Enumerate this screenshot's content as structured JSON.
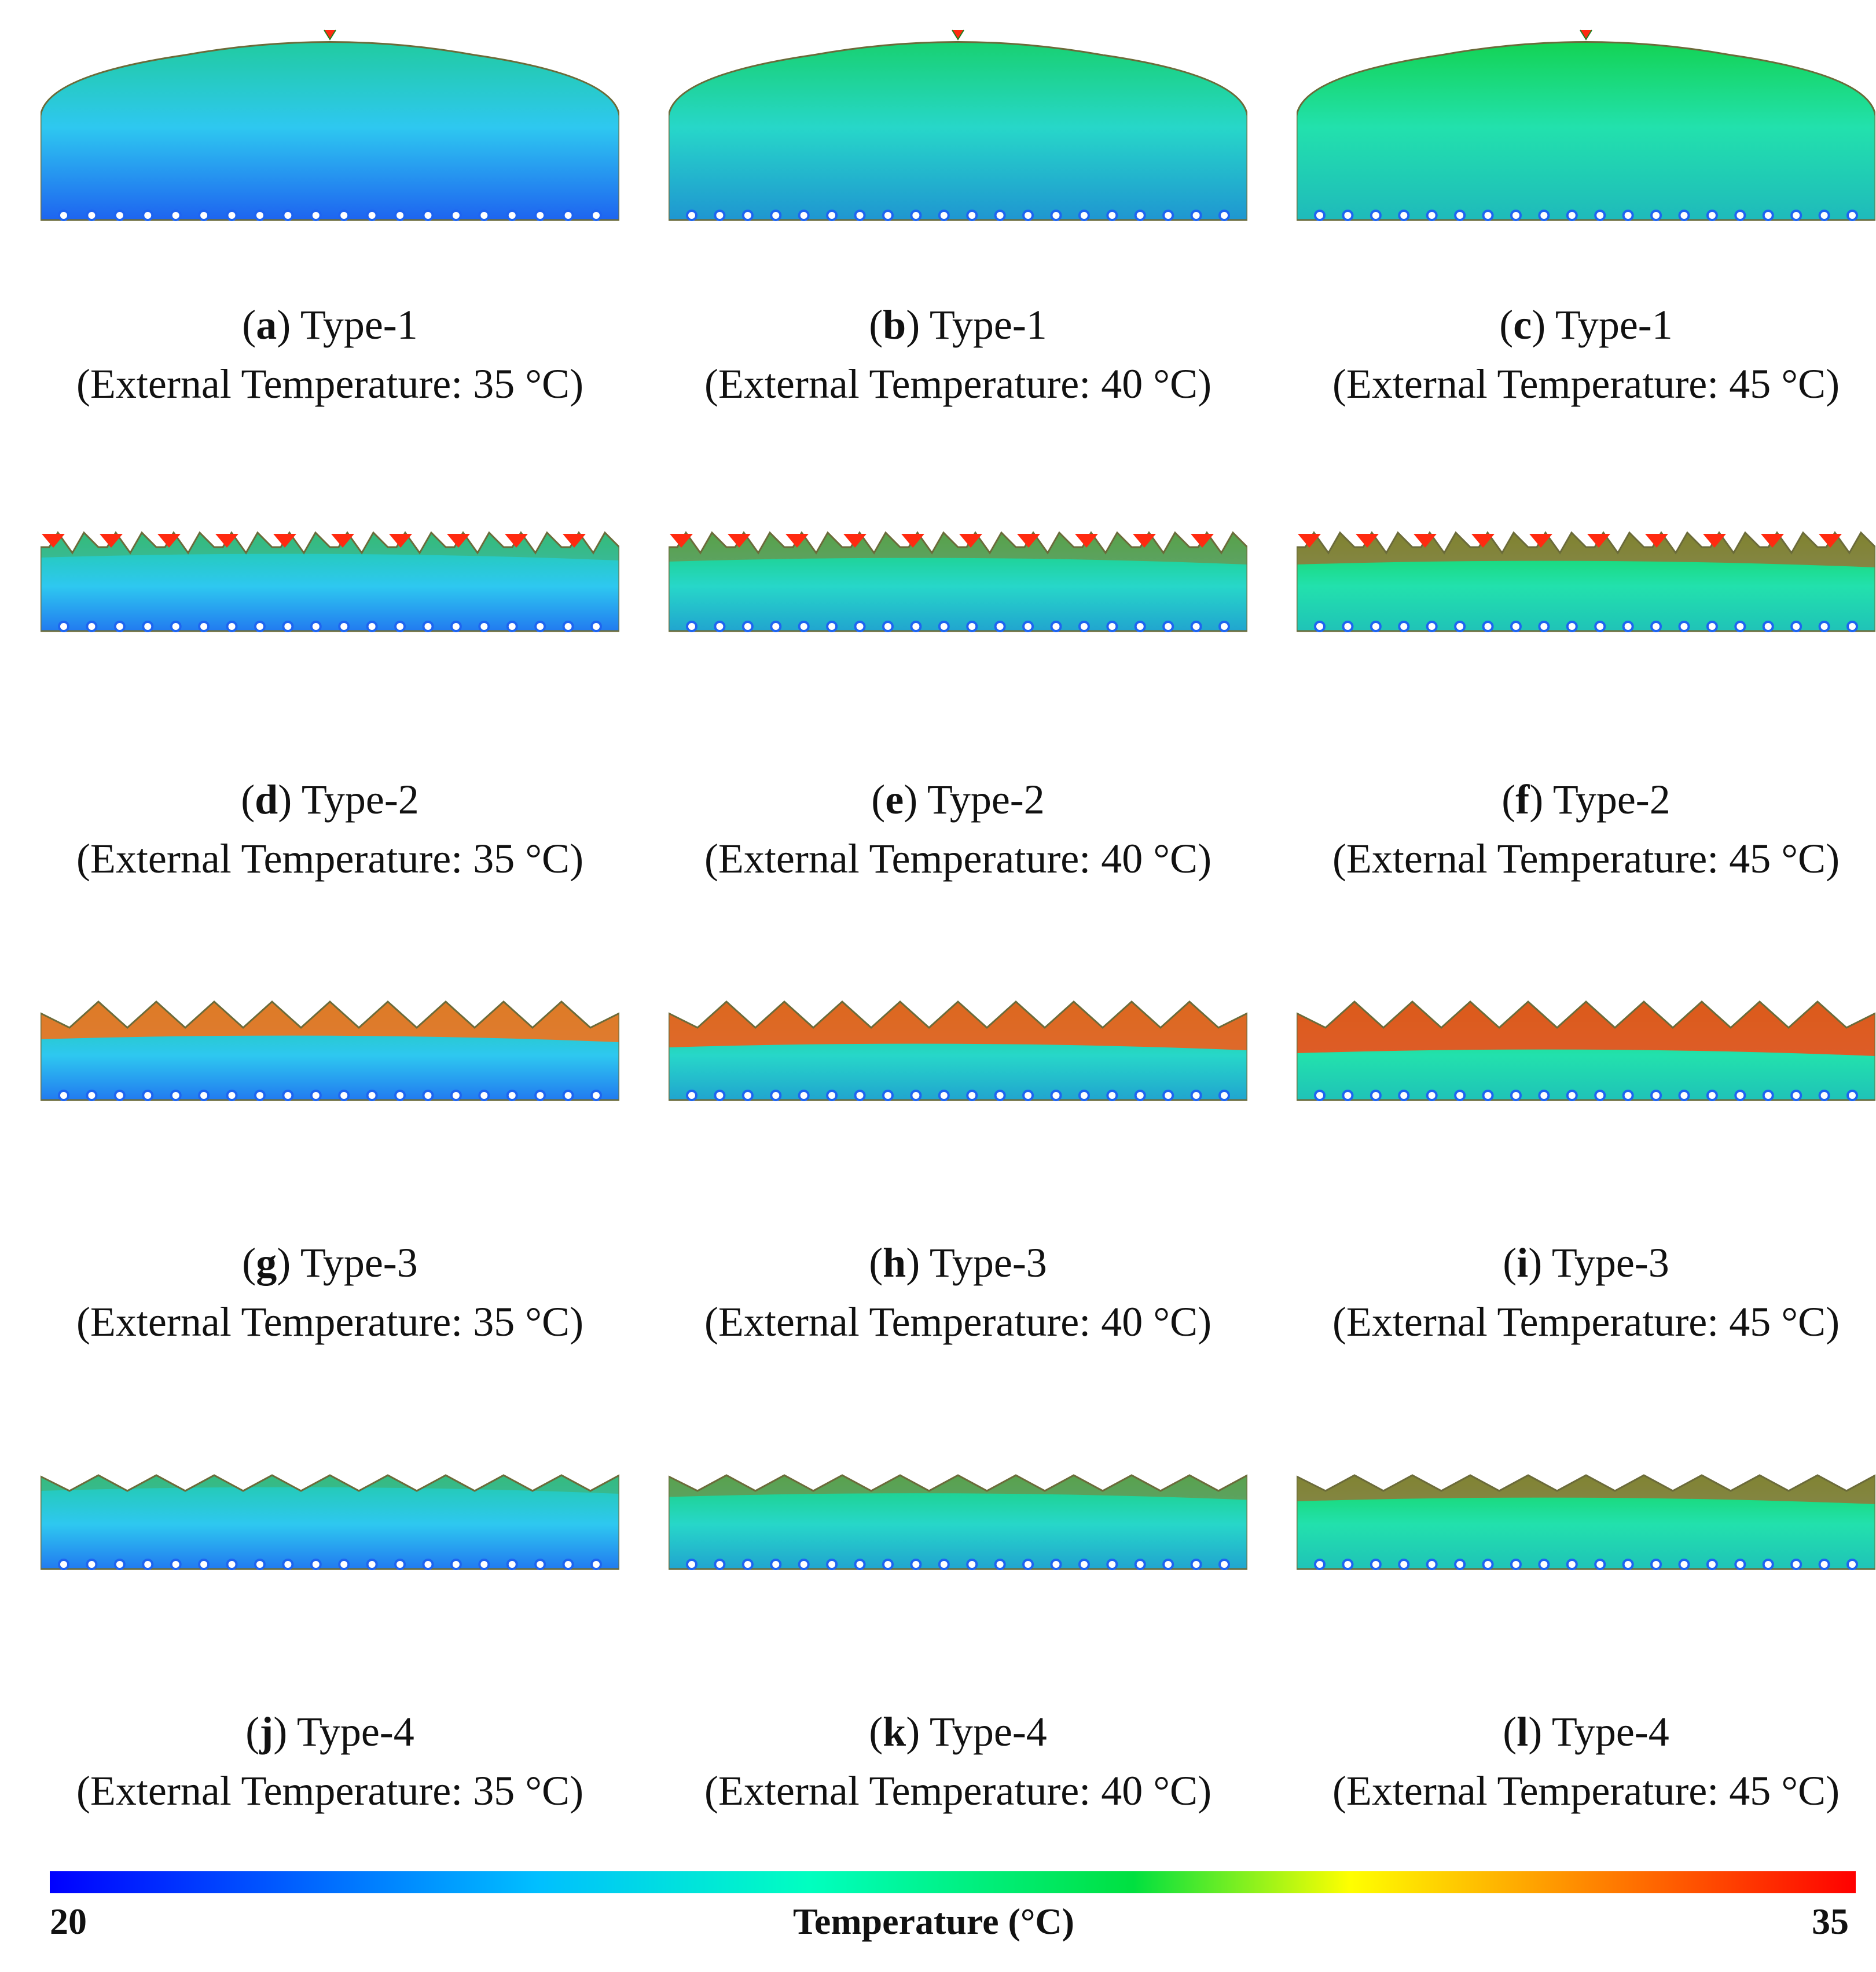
{
  "panels": [
    {
      "letter": "a",
      "type": "Type-1",
      "ext": "(External Temperature: 35 °C)",
      "shape": "dome",
      "heat": 0.0
    },
    {
      "letter": "b",
      "type": "Type-1",
      "ext": "(External Temperature: 40 °C)",
      "shape": "dome",
      "heat": 0.35
    },
    {
      "letter": "c",
      "type": "Type-1",
      "ext": "(External Temperature: 45 °C)",
      "shape": "dome",
      "heat": 0.6
    },
    {
      "letter": "d",
      "type": "Type-2",
      "ext": "(External Temperature: 35 °C)",
      "shape": "sawtooth",
      "heat": 0.0
    },
    {
      "letter": "e",
      "type": "Type-2",
      "ext": "(External Temperature: 40 °C)",
      "shape": "sawtooth",
      "heat": 0.35
    },
    {
      "letter": "f",
      "type": "Type-2",
      "ext": "(External Temperature: 45 °C)",
      "shape": "sawtooth",
      "heat": 0.6
    },
    {
      "letter": "g",
      "type": "Type-3",
      "ext": "(External Temperature: 35 °C)",
      "shape": "zigzag",
      "heat": 0.0
    },
    {
      "letter": "h",
      "type": "Type-3",
      "ext": "(External Temperature: 40 °C)",
      "shape": "zigzag",
      "heat": 0.35
    },
    {
      "letter": "i",
      "type": "Type-3",
      "ext": "(External Temperature: 45 °C)",
      "shape": "zigzag",
      "heat": 0.6
    },
    {
      "letter": "j",
      "type": "Type-4",
      "ext": "(External Temperature: 35 °C)",
      "shape": "shallow",
      "heat": 0.0
    },
    {
      "letter": "k",
      "type": "Type-4",
      "ext": "(External Temperature: 40 °C)",
      "shape": "shallow",
      "heat": 0.35
    },
    {
      "letter": "l",
      "type": "Type-4",
      "ext": "(External Temperature: 45 °C)",
      "shape": "shallow",
      "heat": 0.6
    }
  ],
  "colorbar": {
    "min_label": "20",
    "max_label": "35",
    "title": "Temperature (°C)",
    "stops": [
      "#0000ff",
      "#00bfff",
      "#00ffc0",
      "#00e040",
      "#ffff00",
      "#ff8000",
      "#ff0000"
    ]
  },
  "colors": {
    "cold": "#1e64f0",
    "cool": "#2ec8f0",
    "mild": "#20e6a0",
    "warm": "#10d040",
    "hot": "#ff2a10",
    "orange": "#ff9a10"
  }
}
